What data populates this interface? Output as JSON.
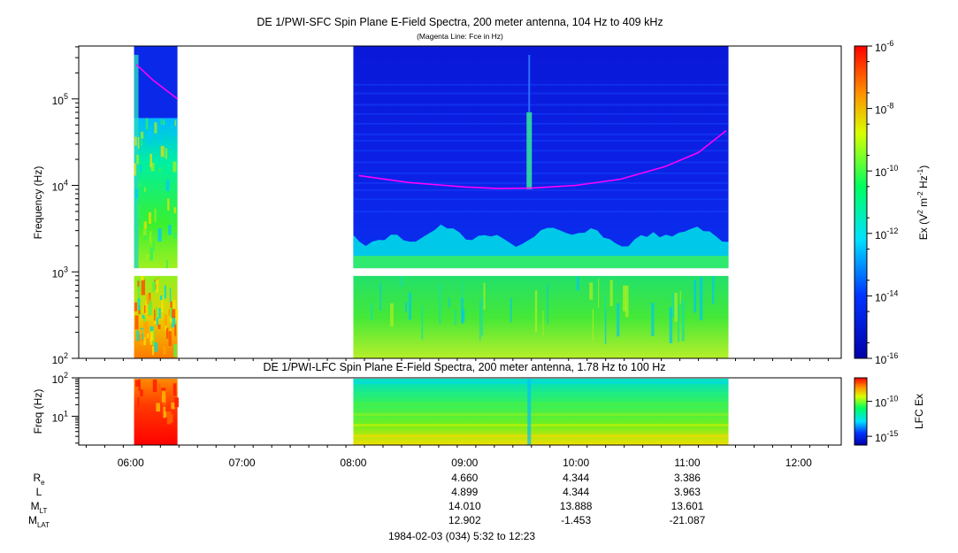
{
  "titles": {
    "main": "DE 1/PWI-SFC  Spin Plane E-Field Spectra, 200 meter antenna, 104 Hz to 409 kHz",
    "subtitle": "(Magenta Line: Fce in Hz)",
    "lower": "DE 1/PWI-LFC  Spin Plane E-Field Spectra, 200 meter antenna, 1.78 Hz to 100 Hz"
  },
  "upper_panel": {
    "ylabel": "Frequency (Hz)",
    "ytick_labels": [
      {
        "base": "10",
        "exp": "2"
      },
      {
        "base": "10",
        "exp": "3"
      },
      {
        "base": "10",
        "exp": "4"
      },
      {
        "base": "10",
        "exp": "5"
      }
    ],
    "colorbar": {
      "label_parts": [
        "Ex (V",
        "2",
        " m",
        "-2",
        " Hz",
        "-1",
        ")"
      ],
      "tick_labels": [
        {
          "base": "10",
          "exp": "-6"
        },
        {
          "base": "10",
          "exp": "-8"
        },
        {
          "base": "10",
          "exp": "-10"
        },
        {
          "base": "10",
          "exp": "-12"
        },
        {
          "base": "10",
          "exp": "-14"
        },
        {
          "base": "10",
          "exp": "-16"
        }
      ]
    }
  },
  "lower_panel": {
    "ylabel": "Freq (Hz)",
    "ytick_labels": [
      {
        "base": "10",
        "exp": "1"
      },
      {
        "base": "10",
        "exp": "2"
      }
    ],
    "colorbar": {
      "label": "LFC Ex",
      "tick_labels": [
        {
          "base": "10",
          "exp": "-10"
        },
        {
          "base": "10",
          "exp": "-15"
        }
      ]
    }
  },
  "xaxis": {
    "tick_labels": [
      "06:00",
      "07:00",
      "08:00",
      "09:00",
      "10:00",
      "11:00",
      "12:00"
    ]
  },
  "ephemeris": {
    "rows": [
      {
        "label": "R",
        "sub": "e",
        "values": [
          "4.660",
          "4.344",
          "3.386"
        ]
      },
      {
        "label": "L",
        "sub": "",
        "values": [
          "4.899",
          "4.344",
          "3.963"
        ]
      },
      {
        "label": "M",
        "sub": "LT",
        "values": [
          "14.010",
          "13.888",
          "13.601"
        ]
      },
      {
        "label": "M",
        "sub": "LAT",
        "values": [
          "12.902",
          "-1.453",
          "-21.087"
        ]
      }
    ],
    "time_range": "1984-02-03 (034) 5:32 to 12:23"
  },
  "chart_data": {
    "type": "heatmap",
    "title": "DE 1/PWI-SFC  Spin Plane E-Field Spectra, 200 meter antenna, 104 Hz to 409 kHz",
    "xlabel": "",
    "ylabel": "Frequency (Hz)",
    "x_units": "UT hours",
    "xlim": [
      5.533,
      12.383
    ],
    "ylim": [
      100,
      409000
    ],
    "yscale": "log",
    "x_ticks": [
      6,
      7,
      8,
      9,
      10,
      11,
      12
    ],
    "colorbar_range_log10": [
      -16,
      -6
    ],
    "data_intervals_UT": [
      [
        6.03,
        6.42
      ],
      [
        8.0,
        11.37
      ]
    ],
    "band_gap_hz": [
      900,
      1100
    ],
    "fce_line": [
      {
        "t": 6.05,
        "f": 250000
      },
      {
        "t": 6.2,
        "f": 165000
      },
      {
        "t": 6.42,
        "f": 100000
      },
      {
        "t": 8.05,
        "f": 13000
      },
      {
        "t": 8.5,
        "f": 10800
      },
      {
        "t": 9.0,
        "f": 9600
      },
      {
        "t": 9.3,
        "f": 9200
      },
      {
        "t": 9.6,
        "f": 9300
      },
      {
        "t": 10.0,
        "f": 10000
      },
      {
        "t": 10.4,
        "f": 11800
      },
      {
        "t": 10.8,
        "f": 16500
      },
      {
        "t": 11.1,
        "f": 24000
      },
      {
        "t": 11.35,
        "f": 43000
      }
    ],
    "lower_panel": {
      "title": "DE 1/PWI-LFC  Spin Plane E-Field Spectra, 200 meter antenna, 1.78 Hz to 100 Hz",
      "ylabel": "Freq (Hz)",
      "ylim": [
        1.78,
        100
      ],
      "yscale": "log",
      "colorbar_ticks_log10": [
        -10,
        -15
      ]
    },
    "ephemeris_times_UT": [
      9,
      10,
      11
    ]
  }
}
